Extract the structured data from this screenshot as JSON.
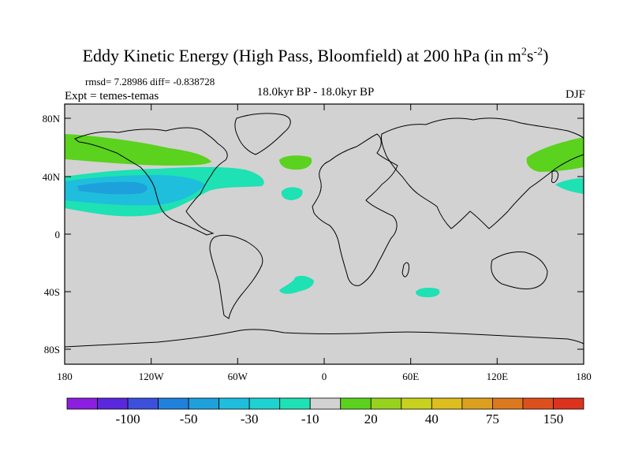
{
  "title": {
    "main": "Eddy Kinetic Energy (High Pass, Bloomfield) at 200 hPa (in m",
    "sup1": "2",
    "s": "s",
    "sup2": "-2",
    "close": ")"
  },
  "stats": "rmsd= 7.28986 diff= -0.838728",
  "experiment": "Expt = temes-temas",
  "period": "18.0kyr BP - 18.0kyr BP",
  "season": "DJF",
  "lat_labels": [
    "80N",
    "40N",
    "0",
    "40S",
    "80S"
  ],
  "lon_labels": [
    "180",
    "120W",
    "60W",
    "0",
    "60E",
    "120E",
    "180"
  ],
  "colorbar": {
    "labels": [
      "-100",
      "-50",
      "-30",
      "-10",
      "20",
      "40",
      "75",
      "150"
    ],
    "colors": [
      "#8c1ee0",
      "#5a28dc",
      "#3c50dc",
      "#1e82dc",
      "#1ea0dc",
      "#1ebedc",
      "#1ed2d2",
      "#1ee1b4",
      "#d2d2d2",
      "#5ad21e",
      "#96d21e",
      "#c8d21e",
      "#dcbe1e",
      "#dca01e",
      "#dc781e",
      "#dc501e",
      "#dc321e"
    ]
  },
  "colors": {
    "land": "#d2d2d2",
    "green": "#5ad21e",
    "cyan": "#1ee1b4",
    "teal": "#1ebedc",
    "blue": "#1ea0dc"
  }
}
